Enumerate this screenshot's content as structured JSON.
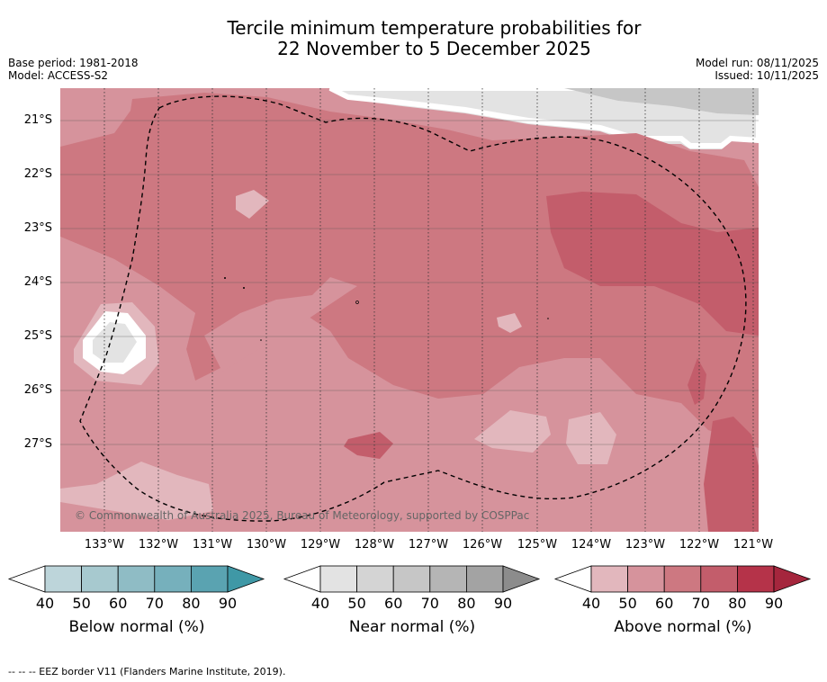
{
  "title_line1": "Tercile minimum temperature probabilities for",
  "title_line2": "22 November to 5 December 2025",
  "base_period": "Base period: 1981-2018",
  "model": "Model: ACCESS-S2",
  "model_run": "Model run: 08/11/2025",
  "issued": "Issued: 10/11/2025",
  "lat_labels": [
    "21°S",
    "22°S",
    "23°S",
    "24°S",
    "25°S",
    "26°S",
    "27°S"
  ],
  "lon_labels": [
    "133°W",
    "132°W",
    "131°W",
    "130°W",
    "129°W",
    "128°W",
    "127°W",
    "126°W",
    "125°W",
    "124°W",
    "123°W",
    "122°W",
    "121°W"
  ],
  "copyright": "© Commonwealth of Australia 2025, Bureau of Meteorology, supported by COSPPac",
  "colorbars": [
    {
      "label": "Below normal (%)",
      "ticks": [
        "40",
        "50",
        "60",
        "70",
        "80",
        "90"
      ],
      "colors": [
        "#bdd5da",
        "#a7c9cf",
        "#8fbcc5",
        "#76b0bc",
        "#5aa3b1",
        "#3f98a6"
      ]
    },
    {
      "label": "Near normal (%)",
      "ticks": [
        "40",
        "50",
        "60",
        "70",
        "80",
        "90"
      ],
      "colors": [
        "#e3e3e3",
        "#d4d4d4",
        "#c6c6c6",
        "#b5b5b5",
        "#a3a3a3",
        "#8c8c8c"
      ]
    },
    {
      "label": "Above normal (%)",
      "ticks": [
        "40",
        "50",
        "60",
        "70",
        "80",
        "90"
      ],
      "colors": [
        "#e2b7bd",
        "#d6939c",
        "#cd7881",
        "#c35d6b",
        "#b53349",
        "#a5263d"
      ]
    }
  ],
  "footnote": "-- -- -- EEZ border V11 (Flanders Marine Institute, 2019)."
}
